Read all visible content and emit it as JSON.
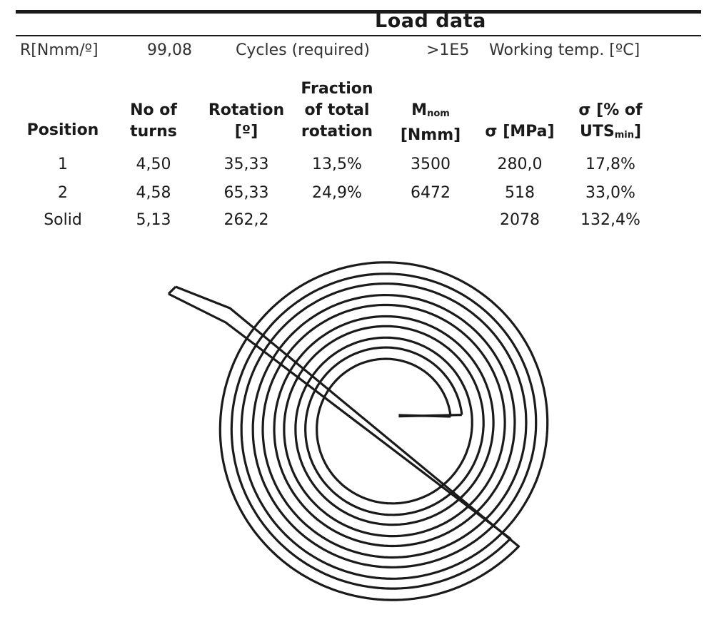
{
  "title": "Load data",
  "meta": {
    "r_label": "R[Nmm/º]",
    "r_value": "99,08",
    "cycles_label": "Cycles (required)",
    "cycles_value": ">1E5",
    "temp_label": "Working temp. [ºC]"
  },
  "table": {
    "headers": {
      "position": "Position",
      "turns_1": "No of",
      "turns_2": "turns",
      "rotation_1": "Rotation",
      "rotation_2": "[º]",
      "fraction_1": "Fraction",
      "fraction_2": "of total",
      "fraction_3": "rotation",
      "mnom_main": "M",
      "mnom_sub": "nom",
      "mnom_unit": "[Nmm]",
      "sigma": "σ [MPa]",
      "sigma_pct_1": "σ [% of",
      "sigma_pct_2_main": "UTS",
      "sigma_pct_2_sub": "min",
      "sigma_pct_2_close": "]"
    },
    "rows": [
      [
        "1",
        "4,50",
        "35,33",
        "13,5%",
        "3500",
        "280,0",
        "17,8%"
      ],
      [
        "2",
        "4,58",
        "65,33",
        "24,9%",
        "6472",
        "518",
        "33,0%"
      ],
      [
        "Solid",
        "5,13",
        "262,2",
        "",
        "",
        "2078",
        "132,4%"
      ]
    ]
  },
  "drawing": {
    "stroke_color": "#1a1a1a",
    "background": "#ffffff"
  }
}
